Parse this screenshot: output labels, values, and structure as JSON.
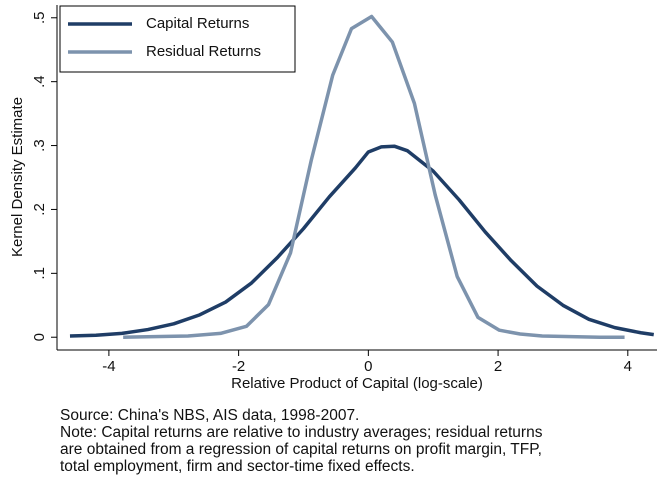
{
  "chart_data": {
    "type": "line",
    "x_label": "Relative Product of Capital (log-scale)",
    "y_label": "Kernel Density Estimate",
    "xlim": [
      -4.8,
      4.45
    ],
    "ylim": [
      -0.02,
      0.52
    ],
    "xticks": [
      -4,
      -2,
      0,
      2,
      4
    ],
    "yticks": [
      0,
      {
        "value": 0.1,
        "label": ".1"
      },
      {
        "value": 0.2,
        "label": ".2"
      },
      {
        "value": 0.3,
        "label": ".3"
      },
      {
        "value": 0.4,
        "label": ".4"
      },
      {
        "value": 0.5,
        "label": ".5"
      }
    ],
    "legend": "top-left",
    "series": [
      {
        "name": "Capital Returns",
        "color": "#1f3d66",
        "x": [
          -4.6,
          -4.2,
          -3.8,
          -3.4,
          -3.0,
          -2.6,
          -2.2,
          -1.8,
          -1.4,
          -1.0,
          -0.6,
          -0.2,
          0.0,
          0.2,
          0.4,
          0.6,
          1.0,
          1.4,
          1.8,
          2.2,
          2.6,
          3.0,
          3.4,
          3.8,
          4.2,
          4.4
        ],
        "values": [
          0.002,
          0.003,
          0.006,
          0.012,
          0.021,
          0.035,
          0.055,
          0.085,
          0.125,
          0.17,
          0.22,
          0.265,
          0.29,
          0.298,
          0.299,
          0.292,
          0.26,
          0.215,
          0.165,
          0.12,
          0.08,
          0.05,
          0.028,
          0.015,
          0.007,
          0.004
        ]
      },
      {
        "name": "Residual Returns",
        "color": "#7d93ad",
        "x": [
          -3.78,
          -2.78,
          -2.28,
          -1.88,
          -1.54,
          -1.2,
          -0.88,
          -0.55,
          -0.26,
          0.05,
          0.37,
          0.71,
          1.03,
          1.37,
          1.69,
          2.02,
          2.34,
          2.68,
          3.57,
          3.95
        ],
        "values": [
          0.0,
          0.002,
          0.006,
          0.017,
          0.051,
          0.132,
          0.277,
          0.41,
          0.483,
          0.502,
          0.462,
          0.366,
          0.223,
          0.095,
          0.031,
          0.011,
          0.005,
          0.002,
          0.0,
          0.0
        ]
      }
    ],
    "notes": [
      "Source: China's NBS, AIS data, 1998-2007.",
      "Note: Capital returns are relative to industry averages; residual returns",
      "are obtained from a regression of capital returns on profit margin, TFP,",
      "total employment, firm and sector-time fixed effects."
    ]
  }
}
